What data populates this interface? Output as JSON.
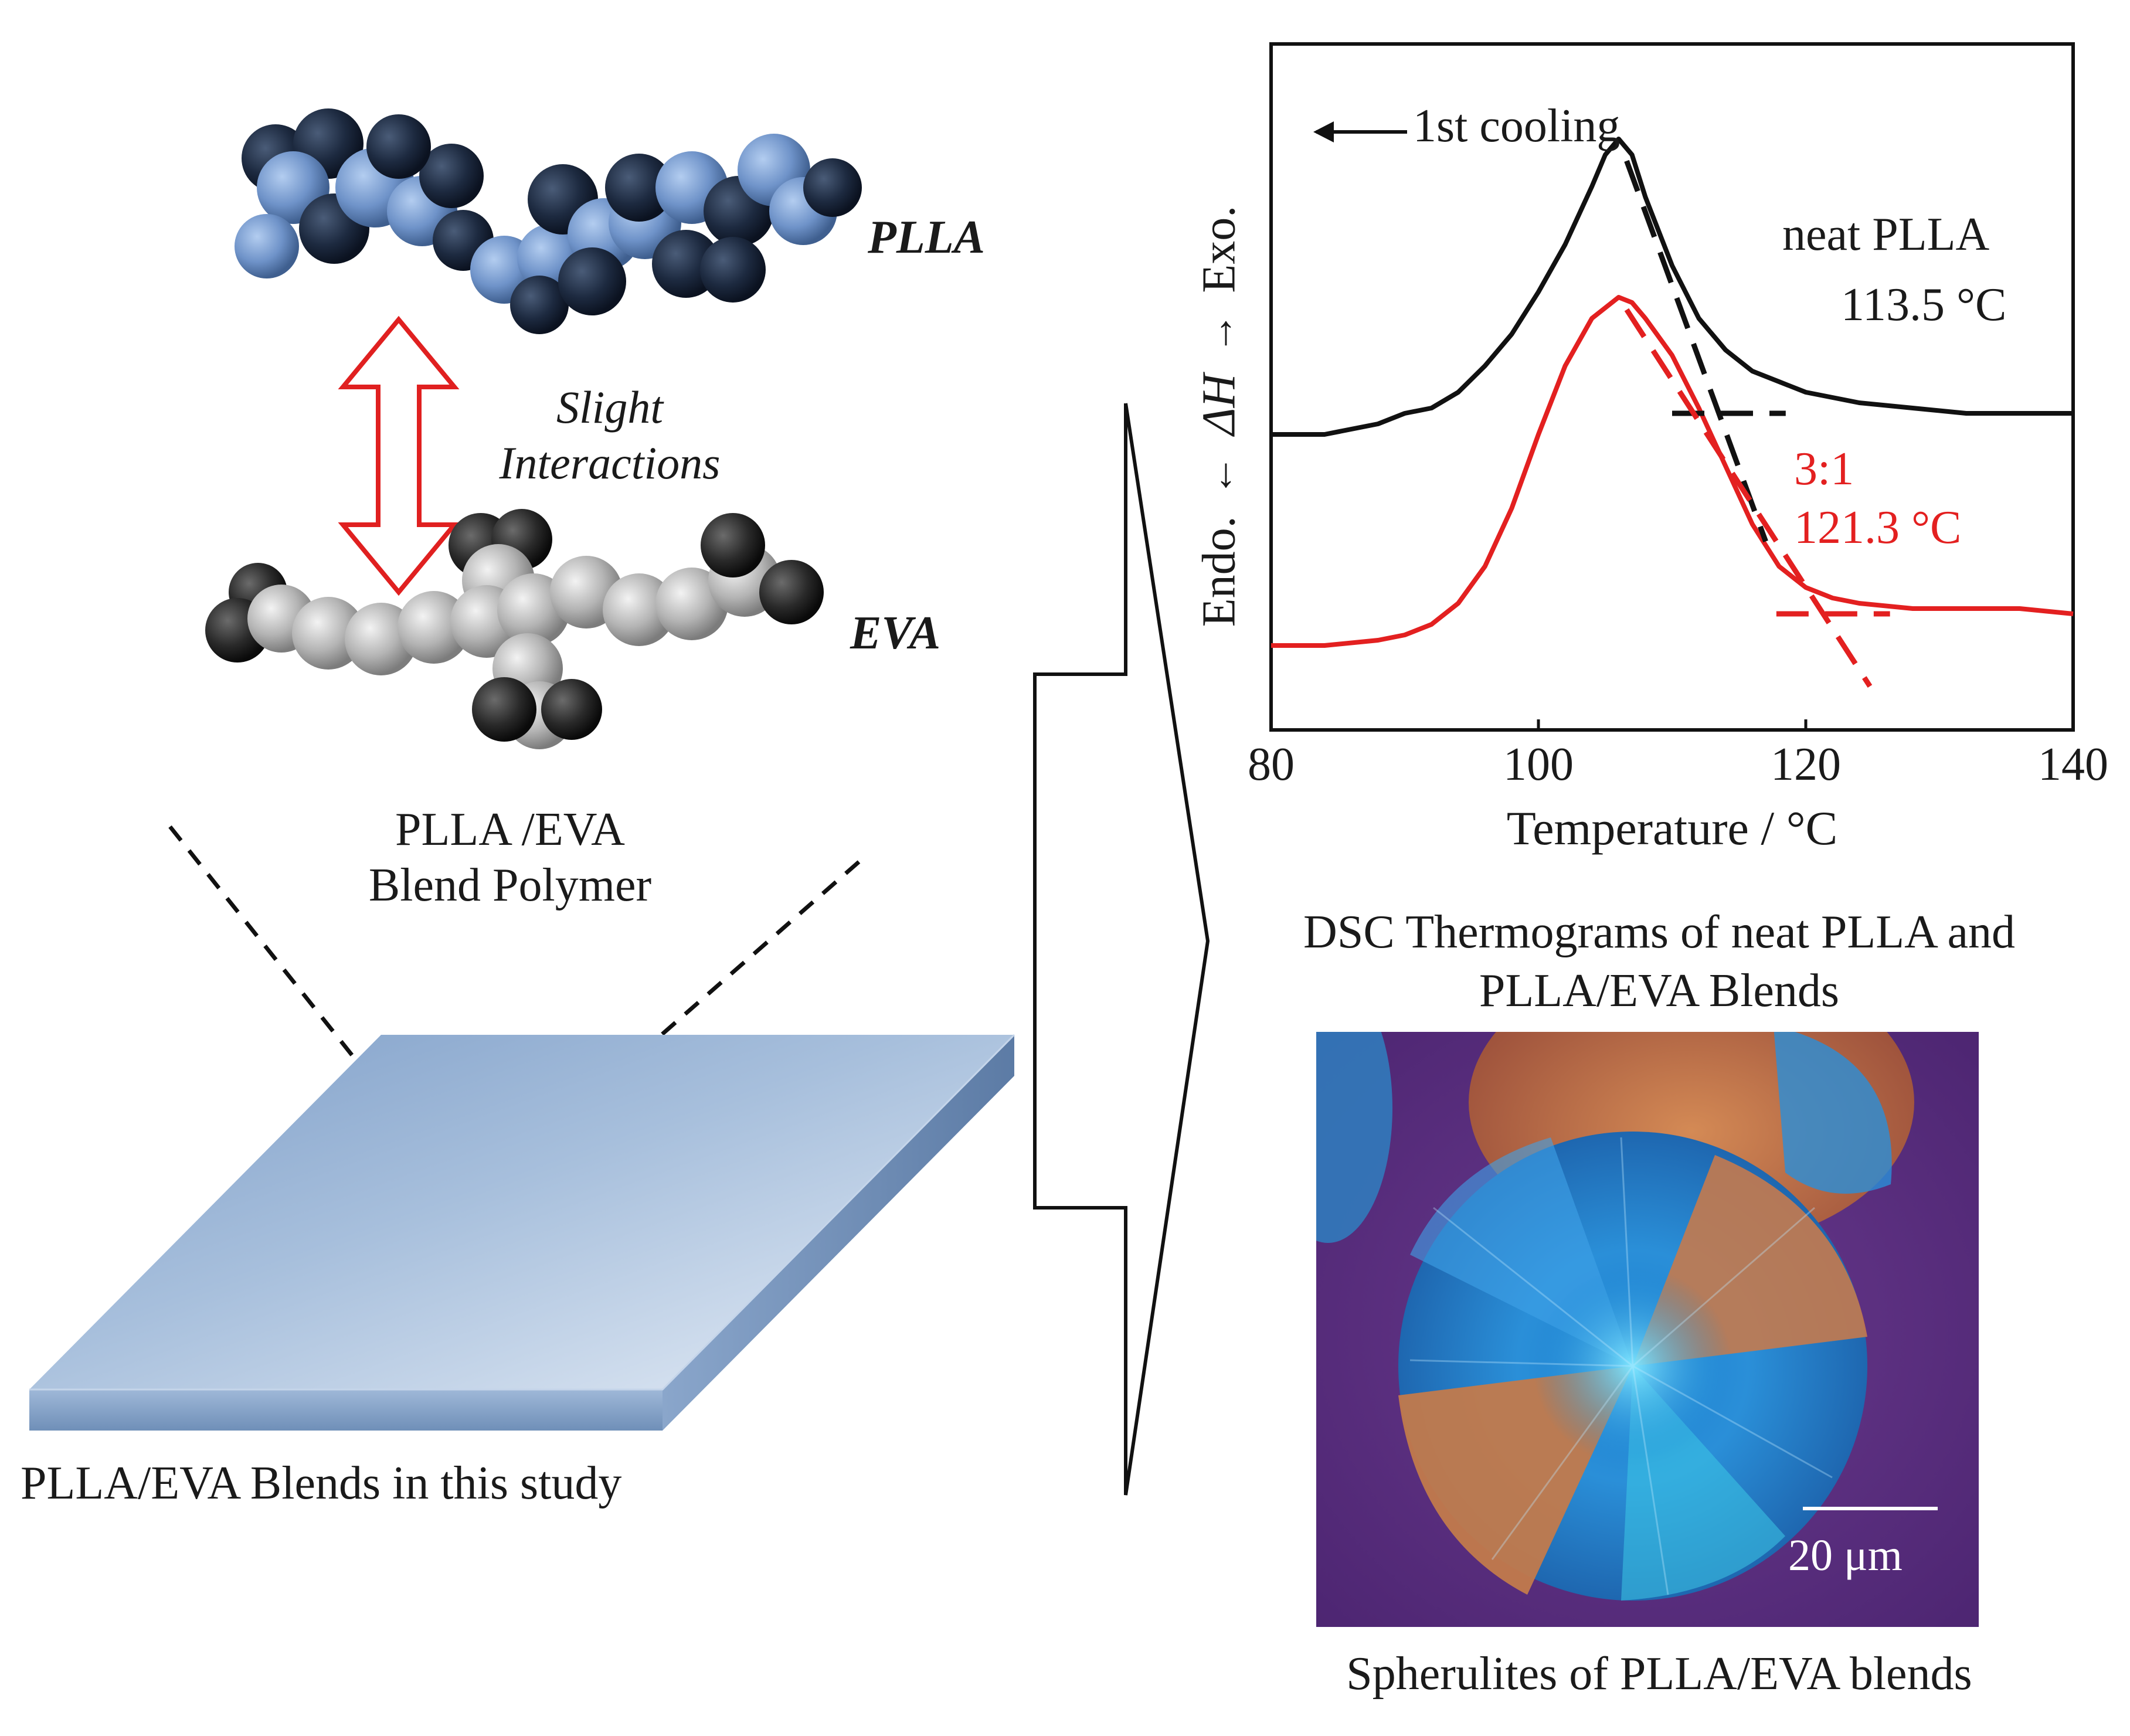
{
  "left_panel": {
    "pllaLabel": "PLLA",
    "evaLabel": "EVA",
    "interactionLine1": "Slight",
    "interactionLine2": "Interactions",
    "blendLine1": "PLLA /EVA",
    "blendLine2": "Blend Polymer",
    "filmCaption": "PLLA/EVA Blends in this study"
  },
  "dsc": {
    "annotation": "1st cooling",
    "yLabelExo": "Exo.",
    "yLabelDH": "ΔH",
    "yLabelEndo": "Endo.",
    "neatLabel": "neat PLLA",
    "neatTemp": "113.5 °C",
    "blendLabel": "3:1",
    "blendTemp": "121.3 °C",
    "caption1": "DSC Thermograms of neat PLLA and",
    "caption2": "PLLA/EVA Blends"
  },
  "chart_data": {
    "type": "line",
    "xlabel": "Temperature / °C",
    "ylabel": "ΔH",
    "xlim": [
      80,
      140
    ],
    "xticks": [
      80,
      100,
      120,
      140
    ],
    "series": [
      {
        "name": "neat PLLA",
        "color": "#111111",
        "x": [
          80,
          84,
          88,
          90,
          92,
          94,
          96,
          98,
          100,
          102,
          104,
          105,
          106,
          107,
          108,
          110,
          112,
          114,
          116,
          118,
          120,
          124,
          128,
          132,
          136,
          140
        ],
        "y": [
          0.56,
          0.56,
          0.58,
          0.6,
          0.61,
          0.64,
          0.69,
          0.75,
          0.83,
          0.92,
          1.03,
          1.09,
          1.12,
          1.09,
          1.01,
          0.88,
          0.78,
          0.72,
          0.68,
          0.66,
          0.64,
          0.62,
          0.61,
          0.6,
          0.6,
          0.6
        ]
      },
      {
        "name": "3:1",
        "color": "#e32020",
        "x": [
          80,
          84,
          88,
          90,
          92,
          94,
          96,
          98,
          100,
          102,
          104,
          105,
          106,
          107,
          108,
          110,
          112,
          114,
          116,
          118,
          120,
          122,
          124,
          128,
          132,
          136,
          140
        ],
        "y": [
          0.16,
          0.16,
          0.17,
          0.18,
          0.2,
          0.24,
          0.31,
          0.42,
          0.56,
          0.69,
          0.78,
          0.8,
          0.82,
          0.81,
          0.78,
          0.71,
          0.61,
          0.5,
          0.39,
          0.31,
          0.27,
          0.25,
          0.24,
          0.23,
          0.23,
          0.23,
          0.22
        ]
      }
    ],
    "onset_lines": [
      {
        "series": "neat PLLA",
        "onset": 113.5,
        "color": "#111111"
      },
      {
        "series": "3:1",
        "onset": 121.3,
        "color": "#e32020"
      }
    ]
  },
  "micrograph": {
    "scaleBar": "20 μm",
    "caption": "Spherulites of PLLA/EVA blends"
  }
}
